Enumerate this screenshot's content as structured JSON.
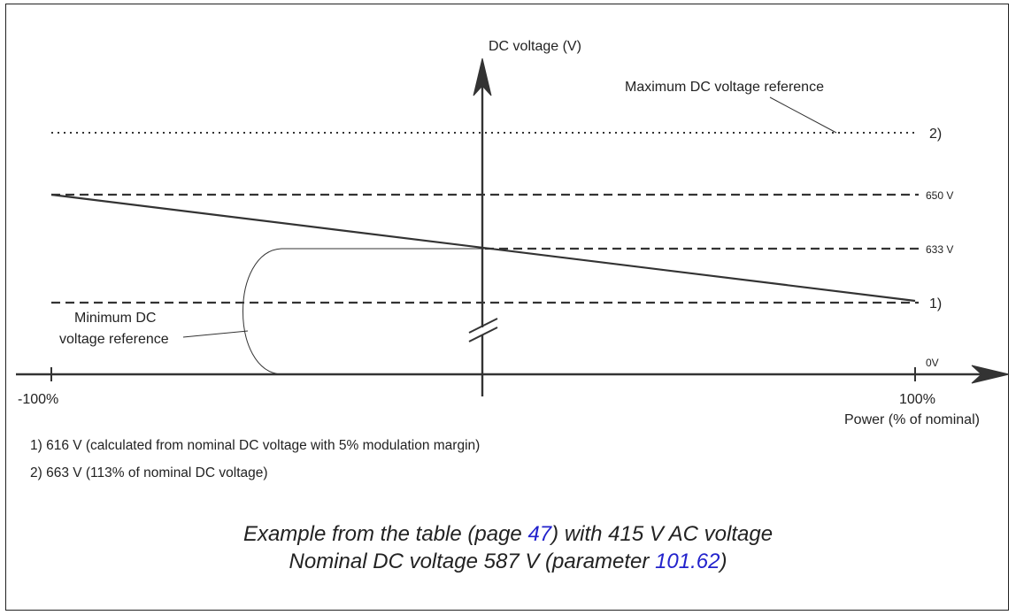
{
  "diagram": {
    "y_axis_label": "DC voltage (V)",
    "x_axis_label": "Power (% of nominal)",
    "x_left_tick": "-100%",
    "x_right_tick": "100%",
    "zero_label": "0V",
    "level_650": "650 V",
    "level_633": "633 V",
    "marker_1": "1)",
    "marker_2": "2)",
    "max_ref_label": "Maximum DC voltage reference",
    "min_ref_label_line1": "Minimum DC",
    "min_ref_label_line2": "voltage reference"
  },
  "notes": {
    "note1": "1) 616 V (calculated from nominal DC voltage with 5% modulation margin)",
    "note2": "2) 663 V (113% of nominal DC voltage)"
  },
  "caption": {
    "line1_pre": "Example from the table (page ",
    "line1_link": "47",
    "line1_post": ") with 415 V AC voltage",
    "line2_pre": "Nominal DC voltage 587 V (parameter ",
    "line2_link": "101.62",
    "line2_post": ")"
  },
  "colors": {
    "ink": "#222222",
    "link": "#2222cc"
  }
}
